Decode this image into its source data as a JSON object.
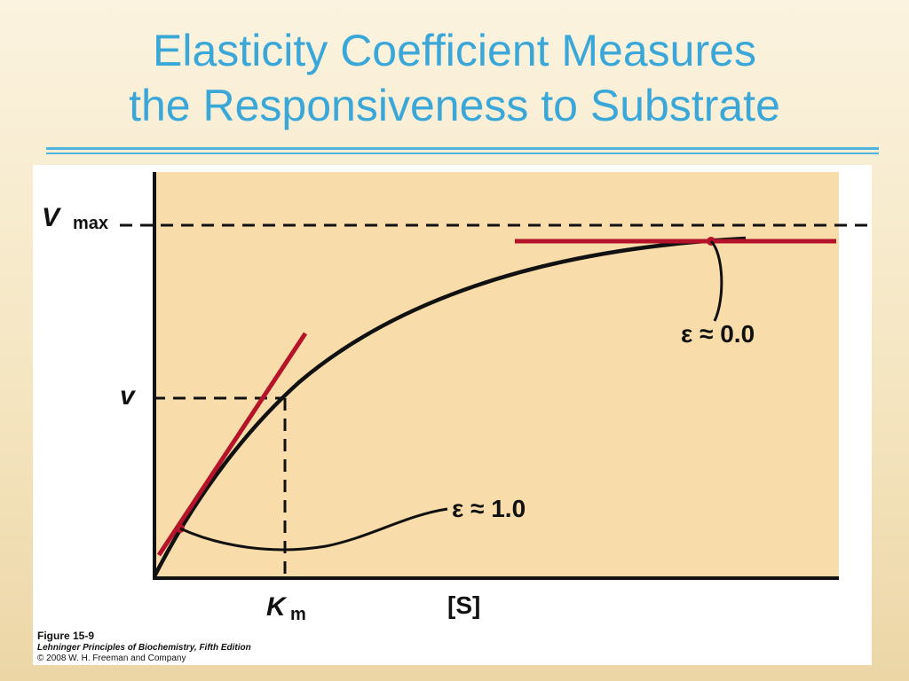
{
  "slide": {
    "title_line1": "Elasticity Coefficient Measures",
    "title_line2": "the Responsiveness to Substrate"
  },
  "diagram": {
    "vmax_symbol": "V",
    "vmax_subscript": "max",
    "v_label": "v",
    "km_symbol": "K",
    "km_subscript": "m",
    "x_label": "[S]",
    "elasticity_high": "ε ≈ 0.0",
    "elasticity_low": "ε ≈ 1.0"
  },
  "caption": {
    "figure": "Figure 15-9",
    "book": "Lehninger Principles of Biochemistry, Fifth Edition",
    "copyright": "© 2008 W. H. Freeman and Company"
  },
  "colors": {
    "title": "#3aa7d8",
    "plot_background": "#f8dcaa",
    "curve": "#111111",
    "tangent": "#b5132a"
  }
}
